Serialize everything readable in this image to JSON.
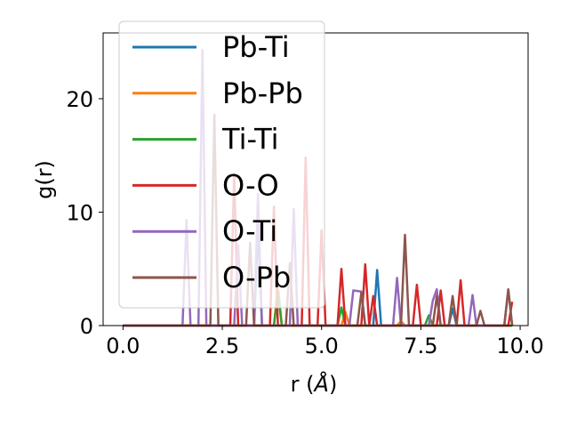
{
  "chart_data": {
    "type": "line",
    "xlabel_prefix": "r (",
    "xlabel_unit": "Å",
    "xlabel_suffix": ")",
    "ylabel": "g(r)",
    "xlim": [
      -0.5,
      10.2
    ],
    "ylim": [
      0,
      25.8
    ],
    "xticks": [
      0.0,
      2.5,
      5.0,
      7.5,
      10.0
    ],
    "xtick_labels": [
      "0.0",
      "2.5",
      "5.0",
      "7.5",
      "10.0"
    ],
    "yticks": [
      0,
      10,
      20
    ],
    "ytick_labels": [
      "0",
      "10",
      "20"
    ],
    "grid": false,
    "legend_position": "upper-left",
    "series": [
      {
        "name": "Pb-Ti",
        "color": "#1f77b4",
        "points": [
          [
            0,
            0
          ],
          [
            3.3,
            0
          ],
          [
            3.4,
            8.5
          ],
          [
            3.5,
            0
          ],
          [
            6.3,
            0
          ],
          [
            6.4,
            4.9
          ],
          [
            6.5,
            0
          ],
          [
            8.2,
            0
          ],
          [
            8.3,
            1.5
          ],
          [
            8.4,
            0
          ],
          [
            9.8,
            0
          ]
        ]
      },
      {
        "name": "Pb-Pb",
        "color": "#ff7f0e",
        "points": [
          [
            0,
            0
          ],
          [
            3.8,
            0
          ],
          [
            3.9,
            3.5
          ],
          [
            4.0,
            0
          ],
          [
            5.5,
            0
          ],
          [
            5.6,
            1.2
          ],
          [
            5.7,
            0
          ],
          [
            6.9,
            0
          ],
          [
            7.0,
            0.4
          ],
          [
            7.1,
            0
          ],
          [
            9.8,
            0
          ]
        ]
      },
      {
        "name": "Ti-Ti",
        "color": "#2ca02c",
        "points": [
          [
            0,
            0
          ],
          [
            3.8,
            0
          ],
          [
            3.9,
            3.0
          ],
          [
            4.0,
            0
          ],
          [
            5.4,
            0
          ],
          [
            5.5,
            1.6
          ],
          [
            5.6,
            0
          ],
          [
            7.6,
            0
          ],
          [
            7.7,
            0.9
          ],
          [
            7.8,
            0
          ],
          [
            9.8,
            0
          ]
        ]
      },
      {
        "name": "O-O",
        "color": "#d62728",
        "points": [
          [
            0,
            0
          ],
          [
            2.7,
            0
          ],
          [
            2.8,
            13.4
          ],
          [
            2.9,
            0
          ],
          [
            3.7,
            0
          ],
          [
            3.8,
            10.5
          ],
          [
            3.9,
            0
          ],
          [
            4.5,
            0
          ],
          [
            4.6,
            14.8
          ],
          [
            4.7,
            0
          ],
          [
            4.9,
            0
          ],
          [
            5.0,
            8.4
          ],
          [
            5.1,
            0
          ],
          [
            5.4,
            0
          ],
          [
            5.5,
            5.0
          ],
          [
            5.6,
            0
          ],
          [
            6.0,
            0
          ],
          [
            6.1,
            5.4
          ],
          [
            6.2,
            0
          ],
          [
            6.3,
            2.6
          ],
          [
            6.4,
            0
          ],
          [
            7.3,
            0
          ],
          [
            7.4,
            3.6
          ],
          [
            7.5,
            0
          ],
          [
            7.9,
            0
          ],
          [
            8.0,
            3.1
          ],
          [
            8.1,
            0
          ],
          [
            8.4,
            0
          ],
          [
            8.5,
            4.0
          ],
          [
            8.6,
            0
          ],
          [
            9.7,
            0
          ],
          [
            9.8,
            2.1
          ]
        ]
      },
      {
        "name": "O-Ti",
        "color": "#9467bd",
        "points": [
          [
            0,
            0
          ],
          [
            1.5,
            0
          ],
          [
            1.6,
            9.3
          ],
          [
            1.7,
            0
          ],
          [
            1.9,
            0
          ],
          [
            2.0,
            24.3
          ],
          [
            2.1,
            0
          ],
          [
            2.8,
            0
          ],
          [
            2.9,
            7.1
          ],
          [
            3.0,
            0
          ],
          [
            3.3,
            0
          ],
          [
            3.4,
            11.6
          ],
          [
            3.5,
            0
          ],
          [
            4.2,
            0
          ],
          [
            4.3,
            10.3
          ],
          [
            4.4,
            0
          ],
          [
            5.7,
            0
          ],
          [
            5.8,
            3.1
          ],
          [
            6.0,
            3.0
          ],
          [
            6.1,
            0
          ],
          [
            6.8,
            0
          ],
          [
            6.9,
            4.2
          ],
          [
            7.0,
            0
          ],
          [
            7.7,
            0
          ],
          [
            7.8,
            2.2
          ],
          [
            7.9,
            3.2
          ],
          [
            8.0,
            0
          ],
          [
            8.7,
            0
          ],
          [
            8.8,
            2.7
          ],
          [
            8.9,
            0
          ],
          [
            9.6,
            0
          ],
          [
            9.7,
            3.2
          ],
          [
            9.8,
            0
          ]
        ]
      },
      {
        "name": "O-Pb",
        "color": "#8c564b",
        "points": [
          [
            0,
            0
          ],
          [
            2.2,
            0
          ],
          [
            2.3,
            18.6
          ],
          [
            2.4,
            0
          ],
          [
            3.1,
            0
          ],
          [
            3.2,
            7.3
          ],
          [
            3.3,
            0
          ],
          [
            4.1,
            0
          ],
          [
            4.2,
            5.5
          ],
          [
            4.3,
            0
          ],
          [
            5.9,
            0
          ],
          [
            6.0,
            2.9
          ],
          [
            6.1,
            0
          ],
          [
            7.0,
            0
          ],
          [
            7.1,
            8.0
          ],
          [
            7.2,
            0
          ],
          [
            7.8,
            0
          ],
          [
            7.9,
            2.6
          ],
          [
            8.0,
            0
          ],
          [
            8.2,
            0
          ],
          [
            8.3,
            2.6
          ],
          [
            8.4,
            0
          ],
          [
            8.9,
            0
          ],
          [
            9.0,
            1.3
          ],
          [
            9.1,
            0
          ],
          [
            9.6,
            0
          ],
          [
            9.7,
            3.2
          ],
          [
            9.8,
            0
          ]
        ]
      }
    ]
  }
}
